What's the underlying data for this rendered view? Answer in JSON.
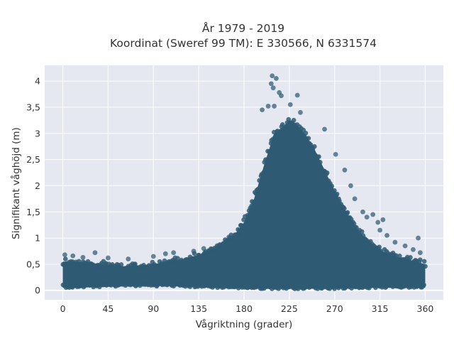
{
  "chart_data": {
    "type": "scatter",
    "title_line1": "År 1979 - 2019",
    "title_line2": "Koordinat (Sweref 99 TM): E 330566, N 6331574",
    "xlabel": "Vågriktning (grader)",
    "ylabel": "Signifikant våghöjd (m)",
    "xlim": [
      -18,
      378
    ],
    "ylim": [
      -0.18,
      4.3
    ],
    "xticks": [
      0,
      45,
      90,
      135,
      180,
      225,
      270,
      315,
      360
    ],
    "xtick_labels": [
      "0",
      "45",
      "90",
      "135",
      "180",
      "225",
      "270",
      "315",
      "360"
    ],
    "yticks": [
      0,
      0.5,
      1,
      1.5,
      2,
      2.5,
      3,
      3.5,
      4
    ],
    "ytick_labels": [
      "0",
      "0,5",
      "1",
      "1,5",
      "2",
      "2,5",
      "3",
      "3,5",
      "4"
    ],
    "grid": true,
    "marker_color": "#2e5a73",
    "background_color": "#e5e8f1",
    "envelope": {
      "x": [
        0,
        15,
        30,
        45,
        60,
        75,
        90,
        105,
        120,
        135,
        150,
        160,
        170,
        180,
        190,
        200,
        210,
        220,
        225,
        230,
        240,
        250,
        260,
        270,
        280,
        290,
        300,
        310,
        320,
        330,
        340,
        350,
        360
      ],
      "upper": [
        0.55,
        0.55,
        0.52,
        0.48,
        0.46,
        0.48,
        0.5,
        0.55,
        0.6,
        0.68,
        0.78,
        0.95,
        1.05,
        1.3,
        1.75,
        2.4,
        3.0,
        3.15,
        3.25,
        3.2,
        3.0,
        2.7,
        2.3,
        1.9,
        1.55,
        1.25,
        1.0,
        0.85,
        0.72,
        0.65,
        0.6,
        0.55,
        0.5
      ],
      "lower": [
        0.05,
        0.05,
        0.06,
        0.07,
        0.08,
        0.08,
        0.08,
        0.08,
        0.07,
        0.06,
        0.05,
        0.05,
        0.04,
        0.04,
        0.03,
        0.03,
        0.03,
        0.03,
        0.03,
        0.03,
        0.03,
        0.03,
        0.03,
        0.03,
        0.04,
        0.04,
        0.04,
        0.05,
        0.05,
        0.05,
        0.05,
        0.05,
        0.05
      ]
    },
    "outliers": [
      {
        "x": 208,
        "y": 4.1
      },
      {
        "x": 212,
        "y": 4.05
      },
      {
        "x": 207,
        "y": 3.95
      },
      {
        "x": 215,
        "y": 3.78
      },
      {
        "x": 217,
        "y": 3.72
      },
      {
        "x": 233,
        "y": 3.73
      },
      {
        "x": 209,
        "y": 3.87
      },
      {
        "x": 204,
        "y": 3.52
      },
      {
        "x": 210,
        "y": 3.52
      },
      {
        "x": 198,
        "y": 3.45
      },
      {
        "x": 226,
        "y": 3.55
      },
      {
        "x": 236,
        "y": 3.4
      },
      {
        "x": 260,
        "y": 3.08
      },
      {
        "x": 271,
        "y": 2.6
      },
      {
        "x": 280,
        "y": 2.3
      },
      {
        "x": 286,
        "y": 2.0
      },
      {
        "x": 290,
        "y": 1.75
      },
      {
        "x": 298,
        "y": 1.5
      },
      {
        "x": 302,
        "y": 1.4
      },
      {
        "x": 308,
        "y": 1.45
      },
      {
        "x": 313,
        "y": 1.3
      },
      {
        "x": 318,
        "y": 1.35
      },
      {
        "x": 315,
        "y": 1.15
      },
      {
        "x": 322,
        "y": 1.05
      },
      {
        "x": 330,
        "y": 0.92
      },
      {
        "x": 340,
        "y": 0.85
      },
      {
        "x": 353,
        "y": 1.0
      },
      {
        "x": 355,
        "y": 0.72
      },
      {
        "x": 348,
        "y": 0.78
      },
      {
        "x": 175,
        "y": 1.08
      },
      {
        "x": 165,
        "y": 1.02
      },
      {
        "x": 155,
        "y": 0.85
      },
      {
        "x": 140,
        "y": 0.8
      },
      {
        "x": 130,
        "y": 0.75
      },
      {
        "x": 110,
        "y": 0.72
      },
      {
        "x": 102,
        "y": 0.7
      },
      {
        "x": 90,
        "y": 0.65
      },
      {
        "x": 65,
        "y": 0.6
      },
      {
        "x": 45,
        "y": 0.62
      },
      {
        "x": 32,
        "y": 0.72
      },
      {
        "x": 20,
        "y": 0.63
      },
      {
        "x": 10,
        "y": 0.66
      },
      {
        "x": 2,
        "y": 0.68
      }
    ]
  }
}
